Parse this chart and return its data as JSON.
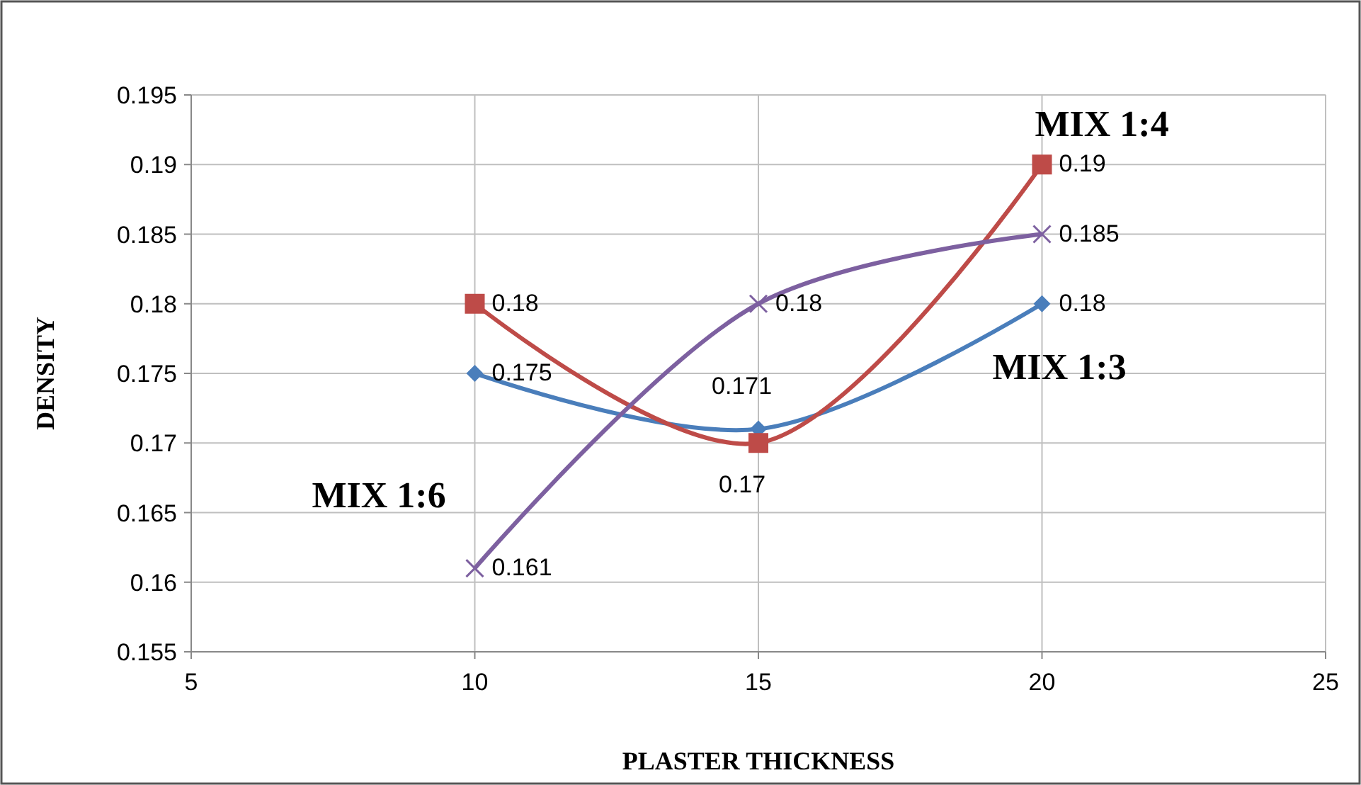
{
  "chart_data": {
    "type": "line",
    "xlabel": "PLASTER THICKNESS",
    "ylabel": "DENSITY",
    "x": [
      10,
      15,
      20
    ],
    "series": [
      {
        "name": "MIX 1:3",
        "color": "#4a7ebb",
        "marker": "diamond",
        "values": [
          0.175,
          0.171,
          0.18
        ]
      },
      {
        "name": "MIX 1:4",
        "color": "#be4b48",
        "marker": "square",
        "values": [
          0.18,
          0.17,
          0.19
        ]
      },
      {
        "name": "MIX 1:6",
        "color": "#7d60a0",
        "marker": "cross",
        "values": [
          0.161,
          0.18,
          0.185
        ]
      }
    ],
    "xlim": [
      5,
      25
    ],
    "xticks": [
      5,
      10,
      15,
      20,
      25
    ],
    "ylim": [
      0.155,
      0.195
    ],
    "yticks": [
      0.155,
      0.16,
      0.165,
      0.17,
      0.175,
      0.18,
      0.185,
      0.19,
      0.195
    ],
    "grid": true,
    "data_labels": true
  }
}
